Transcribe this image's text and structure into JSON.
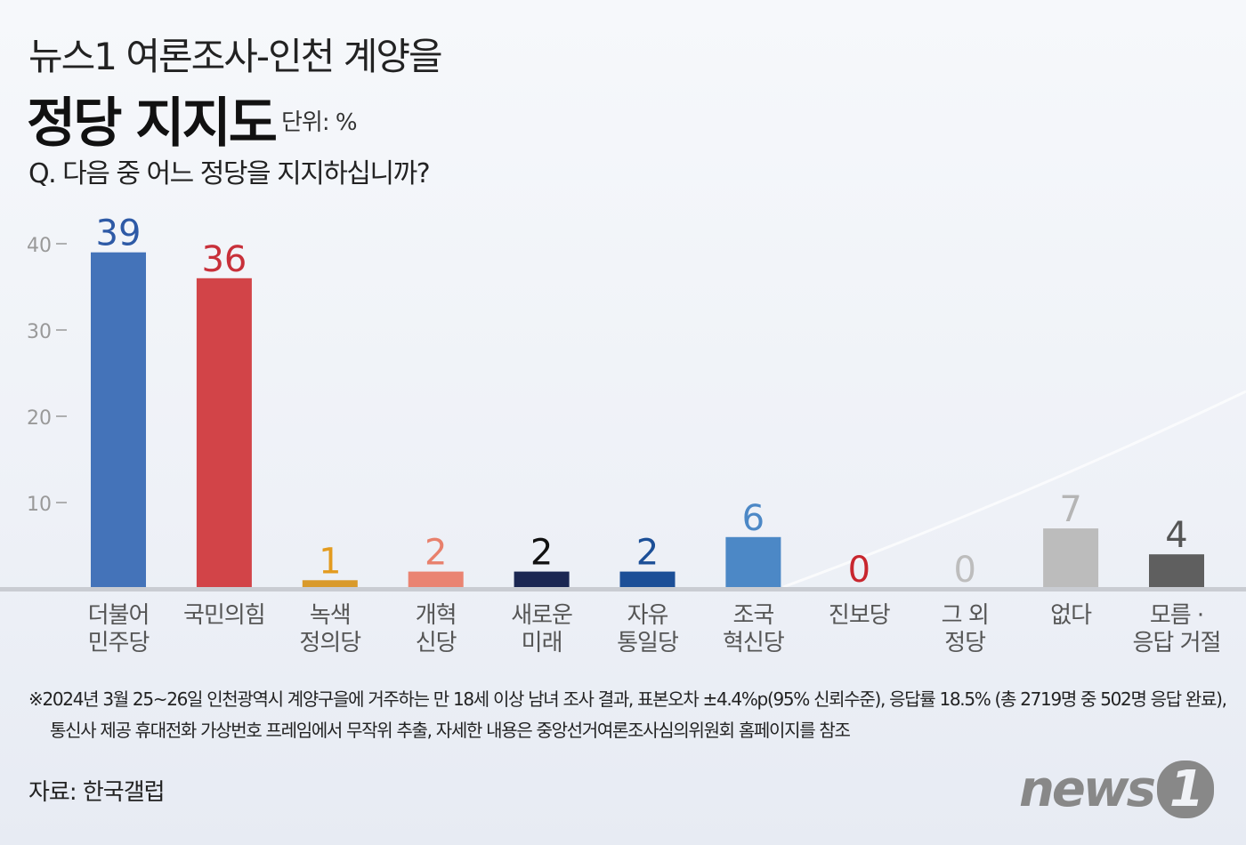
{
  "header": {
    "title": "뉴스1 여론조사-인천 계양을",
    "subtitle": "정당 지지도",
    "unit": "단위: %",
    "question": "Q. 다음 중 어느 정당을 지지하십니까?"
  },
  "chart_data": {
    "type": "bar",
    "title": "정당 지지도",
    "categories": [
      "더불어\n민주당",
      "국민의힘",
      "녹색\n정의당",
      "개혁\n신당",
      "새로운\n미래",
      "자유\n통일당",
      "조국\n혁신당",
      "진보당",
      "그 외\n정당",
      "없다",
      "모름 ·\n응답 거절"
    ],
    "values": [
      39,
      36,
      1,
      2,
      2,
      2,
      6,
      0,
      0,
      7,
      4
    ],
    "colors": [
      "#4473b9",
      "#d24448",
      "#d99a2b",
      "#ea8472",
      "#1b2752",
      "#1c4f97",
      "#4c88c6",
      "#c8262e",
      "#b8b8b8",
      "#bcbcbc",
      "#5f5f5f"
    ],
    "label_colors": [
      "#2e5aa6",
      "#c8303a",
      "#e39b1f",
      "#e8806c",
      "#111111",
      "#1c4f97",
      "#4c88c6",
      "#c8262e",
      "#bdbdbd",
      "#b5b5b5",
      "#555555"
    ],
    "yticks": [
      10,
      20,
      30,
      40
    ],
    "ylim": [
      0,
      40
    ],
    "grid": false
  },
  "footer": {
    "note_line1": "※2024년 3월 25~26일 인천광역시 계양구을에 거주하는 만 18세 이상 남녀 조사 결과, 표본오차 ±4.4%p(95% 신뢰수준), 응답률 18.5% (총 2719명 중 502명 응답 완료),",
    "note_line2": "통신사 제공 휴대전화 가상번호 프레임에서 무작위 추출, 자세한 내용은 중앙선거여론조사심의위원회 홈페이지를 참조",
    "source": "자료: 한국갤럽",
    "logo_text": "news",
    "logo_num": "1"
  }
}
